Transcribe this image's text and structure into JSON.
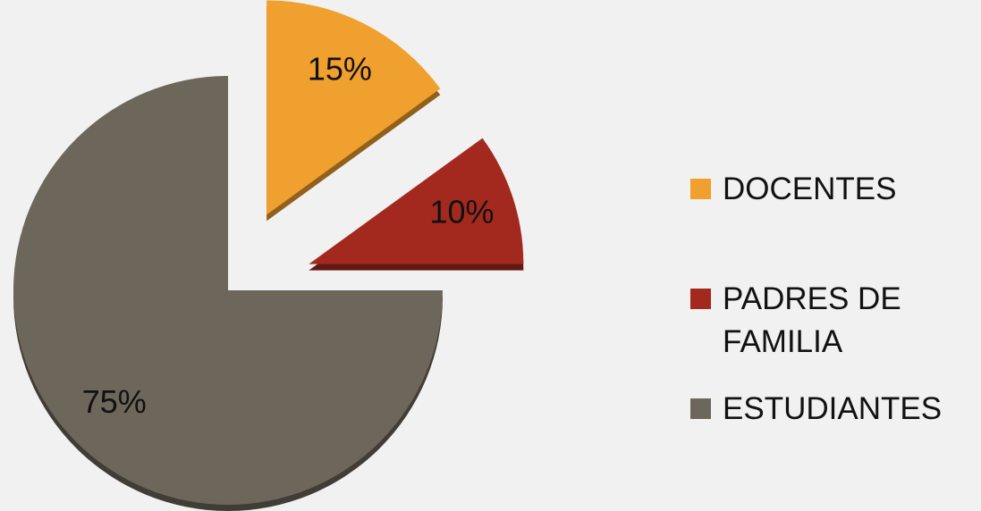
{
  "chart_data": {
    "type": "pie",
    "categories": [
      "DOCENTES",
      "PADRES DE FAMILIA",
      "ESTUDIANTES"
    ],
    "values": [
      15,
      10,
      75
    ],
    "value_labels": [
      "15%",
      "10%",
      "75%"
    ],
    "colors": [
      "#f0a02f",
      "#a3291f",
      "#6d665a"
    ],
    "legend": "right"
  }
}
